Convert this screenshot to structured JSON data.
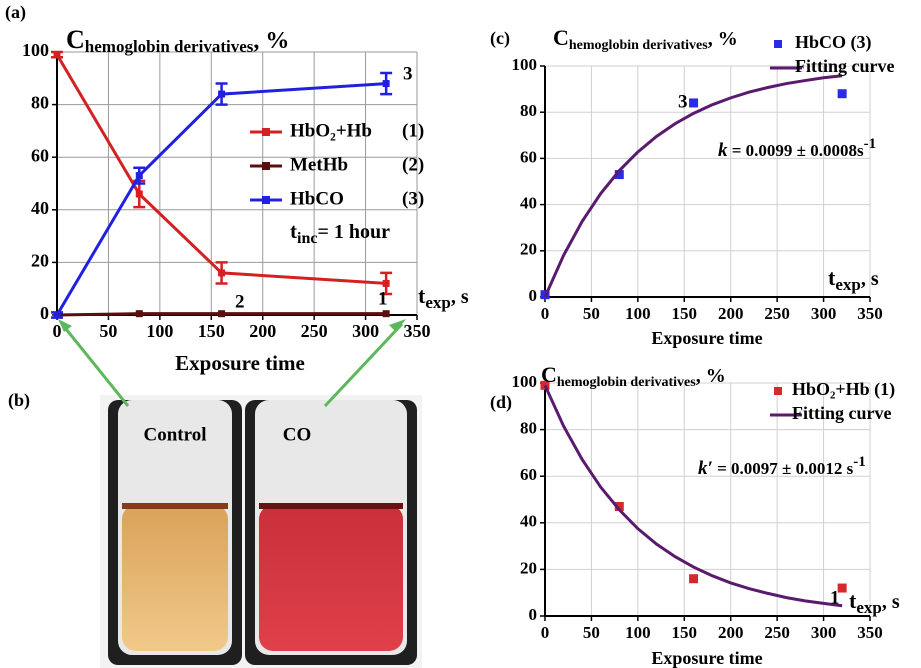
{
  "chart_data": [
    {
      "type": "line",
      "panel": "(a)",
      "y_label": {
        "main": "C",
        "sub": "hemoglobin derivatives",
        "unit": ", %"
      },
      "x_unit": {
        "main": "t",
        "sub": "exp",
        "unit": ", s"
      },
      "x_label": "Exposure time",
      "x": [
        0,
        80,
        160,
        320
      ],
      "series": [
        {
          "name": "HbO₂+Hb",
          "number": "(1)",
          "color": "#d42020",
          "marker": "square",
          "values": [
            99,
            46,
            16,
            12
          ],
          "errors": [
            1,
            5,
            4,
            4
          ]
        },
        {
          "name": "MetHb",
          "number": "(2)",
          "color": "#5a0f0f",
          "marker": "square",
          "values": [
            0,
            0.5,
            0.5,
            0.5
          ]
        },
        {
          "name": "HbCO",
          "number": "(3)",
          "color": "#2020e0",
          "marker": "square",
          "values": [
            0,
            53,
            84,
            88
          ],
          "errors": [
            1,
            3,
            4,
            4
          ]
        }
      ],
      "curve_labels": [
        "1",
        "2",
        "3"
      ],
      "incubation": {
        "main": "t",
        "sub": "inc",
        "rest": "= 1 hour"
      },
      "xlim": [
        0,
        350
      ],
      "xticks": [
        0,
        50,
        100,
        150,
        200,
        250,
        300,
        350
      ],
      "ylim": [
        0,
        100
      ],
      "yticks": [
        0,
        20,
        40,
        60,
        80,
        100
      ],
      "grid": true
    },
    {
      "type": "scatter",
      "panel": "(c)",
      "y_label": {
        "main": "C",
        "sub": "hemoglobin derivatives",
        "unit": ", %"
      },
      "x_unit": {
        "main": "t",
        "sub": "exp",
        "unit": ", s"
      },
      "x_label": "Exposure time",
      "series": [
        {
          "name": "HbCO   (3)",
          "color": "#2a2ae8",
          "kind": "scatter",
          "x": [
            0,
            80,
            160,
            320
          ],
          "values": [
            1,
            53,
            84,
            88
          ]
        },
        {
          "name": "Fitting curve",
          "color": "#5a1a6e",
          "kind": "line",
          "x": [
            0,
            20,
            40,
            60,
            80,
            100,
            120,
            140,
            160,
            180,
            200,
            220,
            240,
            260,
            280,
            300,
            320
          ],
          "values": [
            0,
            18.0,
            32.7,
            44.8,
            54.7,
            62.8,
            69.5,
            75.0,
            79.5,
            83.2,
            86.2,
            88.7,
            90.7,
            92.4,
            93.7,
            94.9,
            95.8
          ]
        }
      ],
      "curve_labels": [
        "3"
      ],
      "rate": {
        "main": "k",
        "rest": " = 0.0099 ± 0.0008s",
        "exp": "-1"
      },
      "xlim": [
        0,
        350
      ],
      "xticks": [
        0,
        50,
        100,
        150,
        200,
        250,
        300,
        350
      ],
      "ylim": [
        0,
        100
      ],
      "yticks": [
        0,
        20,
        40,
        60,
        80,
        100
      ],
      "grid": true
    },
    {
      "type": "scatter",
      "panel": "(d)",
      "y_label": {
        "main": "C",
        "sub": "hemoglobin derivatives",
        "unit": ", %"
      },
      "x_unit": {
        "main": "t",
        "sub": "exp",
        "unit": ", s"
      },
      "x_label": "Exposure time",
      "series": [
        {
          "name": "HbO₂+Hb (1)",
          "color": "#d42a2a",
          "kind": "scatter",
          "x": [
            0,
            80,
            160,
            320
          ],
          "values": [
            99,
            47,
            16,
            12
          ]
        },
        {
          "name": "Fitting curve",
          "color": "#5a1a6e",
          "kind": "line",
          "x": [
            0,
            20,
            40,
            60,
            80,
            100,
            120,
            140,
            160,
            180,
            200,
            220,
            240,
            260,
            280,
            300,
            320
          ],
          "values": [
            99,
            81.5,
            67.2,
            55.3,
            45.6,
            37.5,
            30.9,
            25.5,
            21.0,
            17.3,
            14.2,
            11.7,
            9.7,
            7.9,
            6.5,
            5.4,
            4.4
          ]
        }
      ],
      "curve_labels": [
        "1"
      ],
      "rate": {
        "main": "k′",
        "rest": " = 0.0097 ± 0.0012 s",
        "exp": "-1"
      },
      "xlim": [
        0,
        350
      ],
      "xticks": [
        0,
        50,
        100,
        150,
        200,
        250,
        300,
        350
      ],
      "ylim": [
        0,
        100
      ],
      "yticks": [
        0,
        20,
        40,
        60,
        80,
        100
      ],
      "grid": true
    }
  ],
  "photo": {
    "panel": "(b)",
    "samples": [
      "Control",
      "CO"
    ]
  }
}
